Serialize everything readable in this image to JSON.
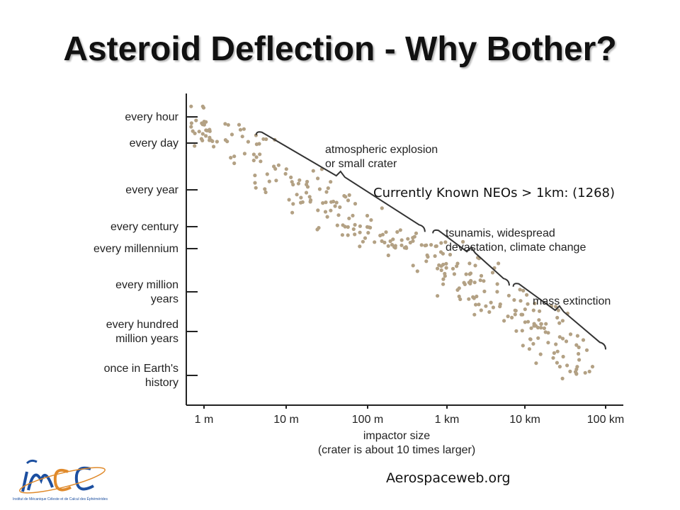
{
  "slide": {
    "title": "Asteroid Deflection - Why Bother?",
    "overlay_note": "Currently Known NEOs > 1km: (1268)",
    "source": "Aerospaceweb.org"
  },
  "logo": {
    "text": "IMCCE",
    "subtitle": "Institut de Mécanique Céleste et de Calcul des Éphémérides"
  },
  "chart_data": {
    "type": "scatter",
    "xlabel": [
      "impactor size",
      "(crater is about 10 times larger)"
    ],
    "x_ticks": [
      "1 m",
      "10 m",
      "100 m",
      "1 km",
      "10 km",
      "100 km"
    ],
    "y_ticks": [
      [
        "every hour"
      ],
      [
        "every day"
      ],
      [
        "every year"
      ],
      [
        "every century"
      ],
      [
        "every millennium"
      ],
      [
        "every million",
        "years"
      ],
      [
        "every hundred",
        "million years"
      ],
      [
        "once in Earth's",
        "history"
      ]
    ],
    "annotations": [
      {
        "lines": [
          "atmospheric explosion",
          "or small crater"
        ],
        "x_from_decade": 0.65,
        "x_to_decade": 2.75
      },
      {
        "lines": [
          "tsunamis, widespread",
          "devastation, climate change"
        ],
        "x_from_decade": 2.85,
        "x_to_decade": 3.8
      },
      {
        "lines": [
          "mass extinction"
        ],
        "x_from_decade": 3.85,
        "x_to_decade": 5.0
      }
    ],
    "trend": {
      "x_decades": [
        0,
        5
      ],
      "y_levels": [
        0.3,
        6.7
      ]
    },
    "point_color": "#b3a184",
    "point_count": 320,
    "grid": false,
    "legend": "none"
  }
}
